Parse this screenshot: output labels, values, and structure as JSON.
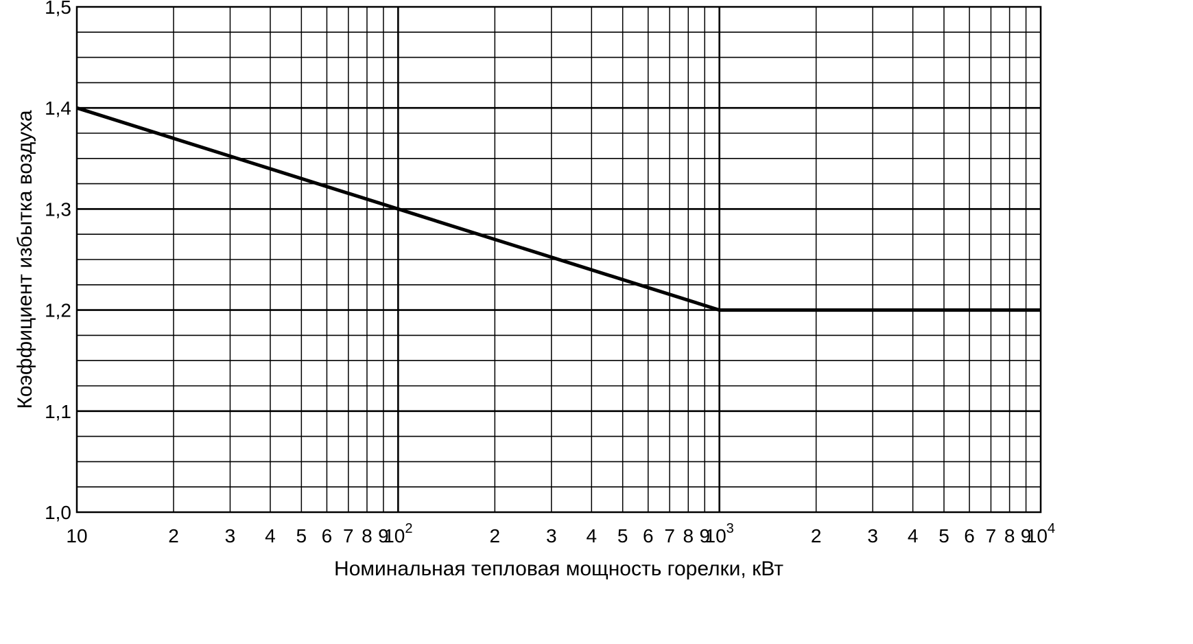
{
  "chart_data": {
    "type": "line",
    "title": "",
    "xlabel": "Номинальная тепловая мощность горелки, кВт",
    "ylabel": "Коэффициент избытка воздуха",
    "x_scale": "log",
    "xlim": [
      10,
      10000
    ],
    "ylim": [
      1.0,
      1.5
    ],
    "grid": true,
    "legend": "none",
    "colors": {
      "line": "#000000",
      "grid": "#000000",
      "background": "#ffffff"
    },
    "y_ticks": [
      {
        "value": 1.0,
        "label": "1,0"
      },
      {
        "value": 1.1,
        "label": "1,1"
      },
      {
        "value": 1.2,
        "label": "1,2"
      },
      {
        "value": 1.3,
        "label": "1,3"
      },
      {
        "value": 1.4,
        "label": "1,4"
      },
      {
        "value": 1.5,
        "label": "1,5"
      }
    ],
    "x_ticks": [
      {
        "value": 10,
        "label": "10"
      },
      {
        "value": 20,
        "label": "2"
      },
      {
        "value": 30,
        "label": "3"
      },
      {
        "value": 40,
        "label": "4"
      },
      {
        "value": 50,
        "label": "5"
      },
      {
        "value": 60,
        "label": "6"
      },
      {
        "value": 70,
        "label": "7"
      },
      {
        "value": 80,
        "label": "8"
      },
      {
        "value": 90,
        "label": "9"
      },
      {
        "value": 100,
        "label": "10",
        "exp": "2"
      },
      {
        "value": 200,
        "label": "2"
      },
      {
        "value": 300,
        "label": "3"
      },
      {
        "value": 400,
        "label": "4"
      },
      {
        "value": 500,
        "label": "5"
      },
      {
        "value": 600,
        "label": "6"
      },
      {
        "value": 700,
        "label": "7"
      },
      {
        "value": 800,
        "label": "8"
      },
      {
        "value": 900,
        "label": "9"
      },
      {
        "value": 1000,
        "label": "10",
        "exp": "3"
      },
      {
        "value": 2000,
        "label": "2"
      },
      {
        "value": 3000,
        "label": "3"
      },
      {
        "value": 4000,
        "label": "4"
      },
      {
        "value": 5000,
        "label": "5"
      },
      {
        "value": 6000,
        "label": "6"
      },
      {
        "value": 7000,
        "label": "7"
      },
      {
        "value": 8000,
        "label": "8"
      },
      {
        "value": 9000,
        "label": "9"
      },
      {
        "value": 10000,
        "label": "10",
        "exp": "4"
      }
    ],
    "series": [
      {
        "x": [
          10,
          1000,
          10000
        ],
        "y": [
          1.4,
          1.2,
          1.2
        ]
      }
    ]
  }
}
